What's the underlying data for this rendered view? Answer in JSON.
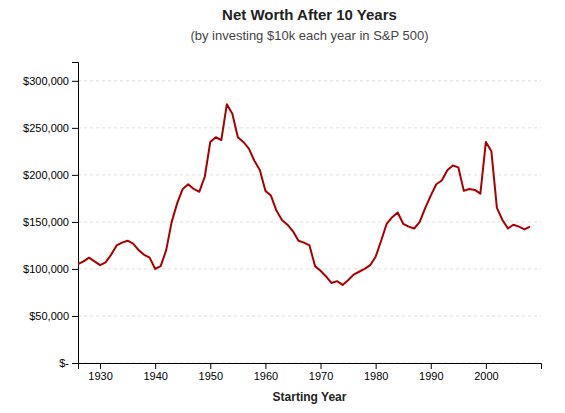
{
  "chart_data": {
    "type": "line",
    "title": "Net Worth After 10 Years",
    "subtitle": "(by investing $10k each year in S&P 500)",
    "xlabel": "Starting Year",
    "color": "#AA0000",
    "grid": true,
    "xlim": [
      1926,
      2010
    ],
    "ylim": [
      0,
      320000
    ],
    "xticks": [
      1930,
      1940,
      1950,
      1960,
      1970,
      1980,
      1990,
      2000
    ],
    "yticks": [
      {
        "value": 0,
        "label": "$-"
      },
      {
        "value": 50000,
        "label": "$50,000"
      },
      {
        "value": 100000,
        "label": "$100,000"
      },
      {
        "value": 150000,
        "label": "$150,000"
      },
      {
        "value": 200000,
        "label": "$200,000"
      },
      {
        "value": 250000,
        "label": "$250,000"
      },
      {
        "value": 300000,
        "label": "$300,000"
      }
    ],
    "x": [
      1926,
      1927,
      1928,
      1929,
      1930,
      1931,
      1932,
      1933,
      1934,
      1935,
      1936,
      1937,
      1938,
      1939,
      1940,
      1941,
      1942,
      1943,
      1944,
      1945,
      1946,
      1947,
      1948,
      1949,
      1950,
      1951,
      1952,
      1953,
      1954,
      1955,
      1956,
      1957,
      1958,
      1959,
      1960,
      1961,
      1962,
      1963,
      1964,
      1965,
      1966,
      1967,
      1968,
      1969,
      1970,
      1971,
      1972,
      1973,
      1974,
      1975,
      1976,
      1977,
      1978,
      1979,
      1980,
      1981,
      1982,
      1983,
      1984,
      1985,
      1986,
      1987,
      1988,
      1989,
      1990,
      1991,
      1992,
      1993,
      1994,
      1995,
      1996,
      1997,
      1998,
      1999,
      2000,
      2001,
      2002,
      2003,
      2004,
      2005,
      2006,
      2007,
      2008
    ],
    "values": [
      105000,
      108000,
      112000,
      108000,
      104000,
      107000,
      115000,
      125000,
      128000,
      130000,
      127000,
      120000,
      115000,
      112000,
      100000,
      103000,
      120000,
      150000,
      170000,
      185000,
      190000,
      185000,
      182000,
      198000,
      235000,
      240000,
      237000,
      275000,
      265000,
      240000,
      235000,
      228000,
      215000,
      205000,
      183000,
      178000,
      162000,
      152000,
      147000,
      140000,
      130000,
      128000,
      125000,
      103000,
      98000,
      92000,
      85000,
      87000,
      83000,
      88000,
      94000,
      97000,
      100000,
      104000,
      113000,
      130000,
      148000,
      155000,
      160000,
      148000,
      145000,
      143000,
      150000,
      165000,
      178000,
      190000,
      194000,
      205000,
      210000,
      208000,
      183000,
      185000,
      184000,
      180000,
      235000,
      225000,
      165000,
      152000,
      143000,
      147000,
      145000,
      142000,
      145000
    ]
  }
}
